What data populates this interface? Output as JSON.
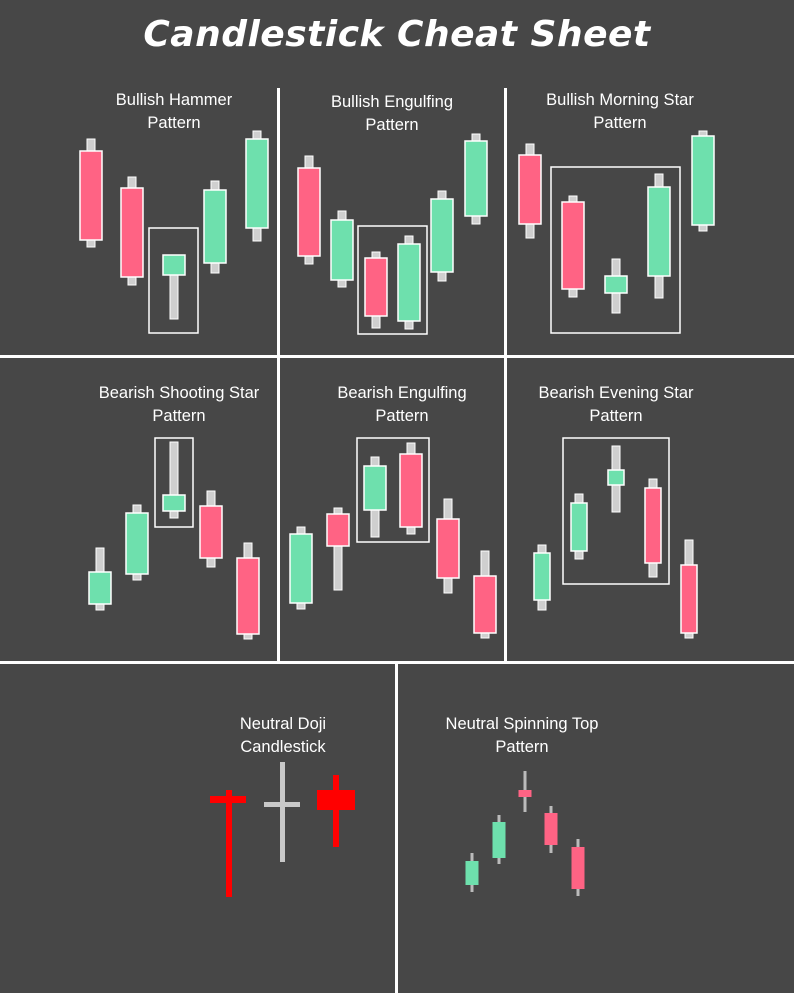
{
  "title": "Candlestick Cheat Sheet",
  "colors": {
    "background": "#474747",
    "bullish": "#6ee0ad",
    "bearish": "#ff6384",
    "doji_red": "#ff0000",
    "neutral_grey": "#c8c8c8",
    "divider": "#ffffff"
  },
  "panels": [
    {
      "id": "bullish-hammer",
      "title_line1": "Bullish Hammer",
      "title_line2": "Pattern"
    },
    {
      "id": "bullish-engulfing",
      "title_line1": "Bullish Engulfing",
      "title_line2": "Pattern"
    },
    {
      "id": "bullish-morning-star",
      "title_line1": "Bullish Morning Star",
      "title_line2": "Pattern"
    },
    {
      "id": "bearish-shooting-star",
      "title_line1": "Bearish Shooting Star",
      "title_line2": "Pattern"
    },
    {
      "id": "bearish-engulfing",
      "title_line1": "Bearish Engulfing",
      "title_line2": "Pattern"
    },
    {
      "id": "bearish-evening-star",
      "title_line1": "Bearish Evening Star",
      "title_line2": "Pattern"
    },
    {
      "id": "neutral-doji",
      "title_line1": "Neutral Doji",
      "title_line2": "Candlestick"
    },
    {
      "id": "neutral-spinning-top",
      "title_line1": "Neutral Spinning Top",
      "title_line2": "Pattern"
    }
  ]
}
